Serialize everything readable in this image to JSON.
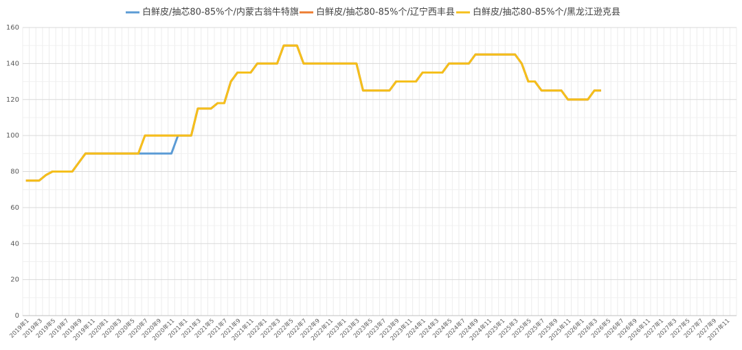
{
  "chart_data": {
    "type": "line",
    "categories": [
      "2019年1",
      null,
      "2019年3",
      null,
      "2019年5",
      null,
      "2019年7",
      null,
      "2019年9",
      null,
      "2019年11",
      null,
      "2020年1",
      null,
      "2020年3",
      null,
      "2020年5",
      null,
      "2020年7",
      null,
      "2020年9",
      null,
      "2020年11",
      null,
      "2021年1",
      null,
      "2021年3",
      null,
      "2021年5",
      null,
      "2021年7",
      null,
      "2021年9",
      null,
      "2021年11",
      null,
      "2022年1",
      null,
      "2022年3",
      null,
      "2022年5",
      null,
      "2022年7",
      null,
      "2022年9",
      null,
      "2022年11",
      null,
      "2023年1",
      null,
      "2023年3",
      null,
      "2023年5",
      null,
      "2023年7",
      null,
      "2023年9",
      null,
      "2023年11",
      null,
      "2024年1",
      null,
      "2024年3",
      null,
      "2024年5",
      null,
      "2024年7",
      null,
      "2024年9",
      null,
      "2024年11",
      null,
      "2025年1",
      null,
      "2025年3",
      null,
      "2025年5",
      null,
      "2025年7",
      null,
      "2025年9",
      null,
      "2025年11",
      null,
      "2026年1",
      null,
      "2026年3",
      null,
      "2026年5",
      null,
      "2026年7",
      null,
      "2026年9",
      null,
      "2026年11",
      null,
      "2027年1",
      null,
      "2027年3",
      null,
      "2027年5",
      null,
      "2027年7",
      null,
      "2027年9",
      null,
      "2027年11",
      null
    ],
    "series": [
      {
        "name": "白鲜皮/抽芯80-85%个/内蒙古翁牛特旗",
        "color": "#5b9bd5",
        "values": [
          75,
          75,
          75,
          78,
          80,
          80,
          80,
          80,
          85,
          90,
          90,
          90,
          90,
          90,
          90,
          90,
          90,
          90,
          90,
          90,
          90,
          90,
          90,
          100,
          100,
          100,
          115,
          115,
          115,
          118,
          118,
          130,
          135,
          135,
          135,
          140,
          140,
          140,
          140,
          150,
          150,
          150,
          140,
          140,
          140,
          140,
          140,
          140,
          140,
          140,
          140,
          125,
          125,
          125,
          125,
          125,
          130,
          130,
          130,
          130,
          135,
          135,
          135,
          135,
          140,
          140,
          140,
          140,
          145,
          145,
          145,
          145,
          145,
          145,
          145,
          140,
          130,
          130,
          125,
          125,
          125,
          125,
          120,
          120,
          120,
          120,
          125,
          125,
          null,
          null,
          null,
          null,
          null,
          null,
          null,
          null,
          null,
          null,
          null,
          null,
          null,
          null,
          null,
          null,
          null,
          null,
          null,
          null
        ]
      },
      {
        "name": "白鲜皮/抽芯80-85%个/辽宁西丰县",
        "color": "#ed7d31",
        "values": [
          75,
          75,
          75,
          78,
          80,
          80,
          80,
          80,
          85,
          90,
          90,
          90,
          90,
          90,
          90,
          90,
          90,
          90,
          100,
          100,
          100,
          100,
          100,
          100,
          100,
          100,
          115,
          115,
          115,
          118,
          118,
          130,
          135,
          135,
          135,
          140,
          140,
          140,
          140,
          150,
          150,
          150,
          140,
          140,
          140,
          140,
          140,
          140,
          140,
          140,
          140,
          125,
          125,
          125,
          125,
          125,
          130,
          130,
          130,
          130,
          135,
          135,
          135,
          135,
          140,
          140,
          140,
          140,
          145,
          145,
          145,
          145,
          145,
          145,
          145,
          140,
          130,
          130,
          125,
          125,
          125,
          125,
          120,
          120,
          120,
          120,
          125,
          125,
          null,
          null,
          null,
          null,
          null,
          null,
          null,
          null,
          null,
          null,
          null,
          null,
          null,
          null,
          null,
          null,
          null,
          null,
          null,
          null
        ]
      },
      {
        "name": "白鲜皮/抽芯80-85%个/黑龙江逊克县",
        "color": "#f5bf1b",
        "values": [
          75,
          75,
          75,
          78,
          80,
          80,
          80,
          80,
          85,
          90,
          90,
          90,
          90,
          90,
          90,
          90,
          90,
          90,
          100,
          100,
          100,
          100,
          100,
          100,
          100,
          100,
          115,
          115,
          115,
          118,
          118,
          130,
          135,
          135,
          135,
          140,
          140,
          140,
          140,
          150,
          150,
          150,
          140,
          140,
          140,
          140,
          140,
          140,
          140,
          140,
          140,
          125,
          125,
          125,
          125,
          125,
          130,
          130,
          130,
          130,
          135,
          135,
          135,
          135,
          140,
          140,
          140,
          140,
          145,
          145,
          145,
          145,
          145,
          145,
          145,
          140,
          130,
          130,
          125,
          125,
          125,
          125,
          120,
          120,
          120,
          120,
          125,
          125,
          null,
          null,
          null,
          null,
          null,
          null,
          null,
          null,
          null,
          null,
          null,
          null,
          null,
          null,
          null,
          null,
          null,
          null,
          null,
          null
        ]
      }
    ],
    "ylim": [
      0,
      160
    ],
    "yticks": [
      0,
      20,
      40,
      60,
      80,
      100,
      120,
      140,
      160
    ],
    "grid": true,
    "legend": "top"
  }
}
